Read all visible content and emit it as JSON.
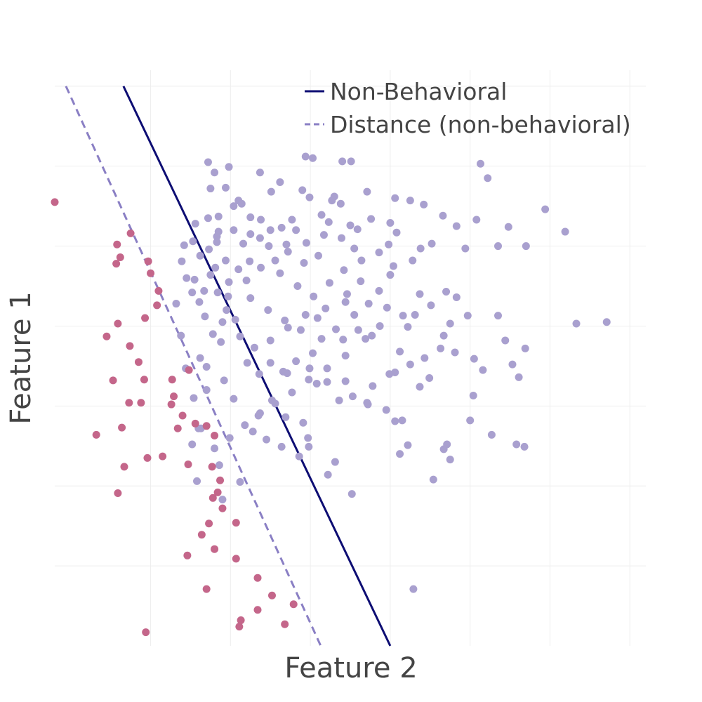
{
  "chart_data": {
    "type": "scatter",
    "xlabel": "Feature 2",
    "ylabel": "Feature 1",
    "xlim": [
      -1.2,
      6.2
    ],
    "ylim": [
      0.0,
      7.2
    ],
    "x_gridlines": [
      0,
      1,
      2,
      3,
      4,
      5,
      6
    ],
    "y_gridlines": [
      1,
      2,
      3,
      4,
      5,
      6,
      7
    ],
    "grid": true,
    "tick_labels_visible": false,
    "legend": {
      "position": "top-right",
      "entries": [
        {
          "label": "Non-Behavioral",
          "style": "solid",
          "color": "#0d0d73"
        },
        {
          "label": "Distance (non-behavioral)",
          "style": "dashed",
          "color": "#8a7fc4"
        }
      ]
    },
    "boundary": {
      "name": "Non-Behavioral",
      "color": "#0d0d73",
      "points": [
        [
          -0.34,
          7.0
        ],
        [
          3.0,
          0.0
        ]
      ]
    },
    "distance_line": {
      "name": "Distance (non-behavioral)",
      "color": "#8a7fc4",
      "points": [
        [
          -1.06,
          7.0
        ],
        [
          2.13,
          0.0
        ]
      ]
    },
    "colors": {
      "majority_points": "#a9a0cf",
      "minority_points": "#c4668a",
      "projection_segments": "#808080"
    },
    "series": [
      {
        "role": "majority",
        "color": "#a9a0cf",
        "points": [
          [
            0.72,
            6.05
          ],
          [
            0.8,
            5.92
          ],
          [
            0.98,
            5.99
          ],
          [
            1.37,
            5.92
          ],
          [
            1.62,
            5.8
          ],
          [
            1.94,
            6.12
          ],
          [
            2.03,
            6.1
          ],
          [
            2.4,
            6.06
          ],
          [
            2.51,
            6.06
          ],
          [
            0.75,
            5.72
          ],
          [
            0.94,
            5.73
          ],
          [
            1.1,
            5.57
          ],
          [
            1.51,
            5.68
          ],
          [
            1.9,
            5.7
          ],
          [
            1.99,
            5.61
          ],
          [
            2.27,
            5.57
          ],
          [
            2.3,
            5.62
          ],
          [
            2.71,
            5.68
          ],
          [
            3.06,
            5.6
          ],
          [
            3.25,
            5.57
          ],
          [
            3.42,
            5.52
          ],
          [
            4.13,
            6.03
          ],
          [
            4.22,
            5.85
          ],
          [
            4.94,
            5.46
          ],
          [
            5.19,
            5.18
          ],
          [
            4.7,
            5.0
          ],
          [
            3.7,
            4.43
          ],
          [
            3.83,
            4.36
          ],
          [
            3.97,
            4.13
          ],
          [
            4.35,
            4.13
          ],
          [
            4.44,
            3.82
          ],
          [
            4.53,
            3.52
          ],
          [
            4.69,
            3.72
          ],
          [
            5.33,
            4.03
          ],
          [
            5.71,
            4.05
          ],
          [
            3.81,
            3.67
          ],
          [
            3.37,
            3.24
          ],
          [
            3.12,
            3.68
          ],
          [
            3.43,
            3.6
          ],
          [
            3.49,
            3.35
          ],
          [
            3.63,
            3.72
          ],
          [
            4.05,
            3.59
          ],
          [
            4.04,
            3.13
          ],
          [
            4.16,
            3.45
          ],
          [
            4.61,
            3.36
          ],
          [
            4.0,
            2.82
          ],
          [
            3.71,
            2.52
          ],
          [
            3.12,
            2.4
          ],
          [
            3.22,
            2.51
          ],
          [
            3.54,
            2.08
          ],
          [
            3.67,
            2.46
          ],
          [
            3.75,
            2.33
          ],
          [
            4.58,
            2.52
          ],
          [
            4.68,
            2.49
          ],
          [
            4.27,
            2.64
          ],
          [
            2.22,
            2.14
          ],
          [
            2.31,
            2.3
          ],
          [
            2.52,
            1.9
          ],
          [
            1.98,
            2.49
          ],
          [
            1.86,
            2.37
          ],
          [
            1.64,
            2.49
          ],
          [
            1.45,
            2.58
          ],
          [
            1.28,
            2.68
          ],
          [
            1.35,
            2.88
          ],
          [
            1.52,
            3.07
          ],
          [
            1.69,
            2.86
          ],
          [
            1.91,
            2.79
          ],
          [
            1.97,
            2.6
          ],
          [
            2.36,
            3.07
          ],
          [
            2.53,
            3.12
          ],
          [
            2.71,
            3.04
          ],
          [
            2.78,
            3.25
          ],
          [
            2.95,
            2.95
          ],
          [
            3.06,
            2.81
          ],
          [
            3.15,
            2.82
          ],
          [
            2.21,
            3.3
          ],
          [
            2.44,
            3.31
          ],
          [
            1.71,
            3.41
          ],
          [
            1.99,
            3.47
          ],
          [
            2.08,
            3.28
          ],
          [
            2.72,
            3.02
          ],
          [
            2.99,
            3.4
          ],
          [
            3.06,
            3.42
          ],
          [
            2.41,
            3.83
          ],
          [
            2.77,
            3.88
          ],
          [
            3.25,
            3.52
          ],
          [
            3.67,
            3.88
          ],
          [
            3.51,
            4.26
          ],
          [
            3.75,
            4.03
          ],
          [
            3.16,
            4.13
          ],
          [
            3.22,
            3.99
          ],
          [
            3.31,
            4.14
          ],
          [
            3.37,
            4.4
          ],
          [
            3.0,
            4.64
          ],
          [
            3.28,
            4.82
          ],
          [
            3.04,
            4.75
          ],
          [
            2.98,
            5.02
          ],
          [
            3.0,
            5.29
          ],
          [
            3.08,
            5.17
          ],
          [
            3.38,
            4.97
          ],
          [
            3.52,
            5.03
          ],
          [
            3.66,
            5.38
          ],
          [
            3.83,
            5.25
          ],
          [
            3.94,
            4.97
          ],
          [
            4.35,
            5.0
          ],
          [
            4.08,
            5.33
          ],
          [
            4.48,
            5.24
          ],
          [
            2.86,
            4.92
          ],
          [
            2.55,
            4.97
          ],
          [
            2.5,
            5.26
          ],
          [
            2.38,
            5.53
          ],
          [
            2.14,
            5.39
          ],
          [
            2.23,
            5.3
          ],
          [
            2.1,
            4.88
          ],
          [
            1.92,
            4.79
          ],
          [
            1.72,
            4.93
          ],
          [
            1.37,
            5.1
          ],
          [
            1.16,
            5.03
          ],
          [
            1.24,
            4.81
          ],
          [
            1.2,
            4.57
          ],
          [
            0.97,
            4.37
          ],
          [
            0.95,
            4.2
          ],
          [
            0.9,
            4.05
          ],
          [
            0.81,
            4.73
          ],
          [
            0.94,
            4.82
          ],
          [
            0.85,
            5.18
          ],
          [
            0.53,
            5.06
          ],
          [
            0.42,
            5.01
          ],
          [
            0.39,
            4.81
          ],
          [
            0.55,
            4.58
          ],
          [
            0.52,
            4.42
          ],
          [
            0.67,
            4.44
          ],
          [
            0.73,
            4.96
          ],
          [
            0.83,
            5.12
          ],
          [
            0.56,
            5.28
          ],
          [
            0.72,
            5.35
          ],
          [
            0.85,
            5.37
          ],
          [
            1.04,
            5.5
          ],
          [
            1.14,
            5.53
          ],
          [
            1.25,
            5.36
          ],
          [
            1.38,
            5.33
          ],
          [
            1.5,
            5.2
          ],
          [
            1.64,
            5.23
          ],
          [
            1.77,
            5.33
          ],
          [
            1.82,
            5.2
          ],
          [
            1.7,
            5.02
          ],
          [
            1.56,
            4.82
          ],
          [
            1.38,
            4.73
          ],
          [
            1.1,
            4.71
          ],
          [
            0.98,
            4.55
          ],
          [
            0.84,
            4.42
          ],
          [
            0.75,
            4.64
          ],
          [
            0.61,
            4.3
          ],
          [
            0.68,
            4.12
          ],
          [
            0.78,
            3.9
          ],
          [
            0.88,
            3.8
          ],
          [
            0.62,
            3.6
          ],
          [
            0.7,
            3.49
          ],
          [
            0.92,
            3.32
          ],
          [
            1.04,
            3.09
          ],
          [
            1.21,
            3.54
          ],
          [
            1.36,
            3.4
          ],
          [
            1.5,
            3.54
          ],
          [
            1.66,
            3.43
          ],
          [
            1.82,
            3.56
          ],
          [
            2.03,
            3.66
          ],
          [
            2.14,
            3.84
          ],
          [
            2.32,
            3.96
          ],
          [
            2.55,
            4.14
          ],
          [
            2.73,
            4.28
          ],
          [
            2.96,
            4.23
          ],
          [
            2.87,
            4.0
          ],
          [
            2.69,
            3.84
          ],
          [
            2.44,
            3.63
          ],
          [
            2.21,
            3.47
          ],
          [
            1.98,
            3.33
          ],
          [
            1.77,
            3.17
          ],
          [
            1.56,
            3.03
          ],
          [
            1.37,
            2.91
          ],
          [
            1.18,
            2.76
          ],
          [
            0.99,
            2.6
          ],
          [
            0.8,
            2.47
          ],
          [
            0.63,
            2.72
          ],
          [
            0.54,
            3.1
          ],
          [
            0.44,
            3.47
          ],
          [
            0.38,
            3.88
          ],
          [
            0.32,
            4.28
          ],
          [
            0.45,
            4.6
          ],
          [
            0.62,
            4.88
          ],
          [
            0.83,
            5.05
          ],
          [
            1.04,
            5.2
          ],
          [
            1.25,
            5.15
          ],
          [
            1.48,
            5.0
          ],
          [
            1.62,
            4.66
          ],
          [
            1.84,
            4.5
          ],
          [
            2.04,
            4.37
          ],
          [
            2.24,
            4.54
          ],
          [
            2.42,
            4.7
          ],
          [
            2.63,
            4.56
          ],
          [
            2.86,
            4.44
          ],
          [
            2.09,
            4.1
          ],
          [
            1.88,
            3.95
          ],
          [
            1.68,
            4.07
          ],
          [
            1.47,
            4.2
          ],
          [
            1.25,
            4.35
          ],
          [
            1.06,
            4.08
          ],
          [
            1.12,
            3.87
          ],
          [
            1.3,
            3.73
          ],
          [
            1.5,
            3.82
          ],
          [
            2.44,
            4.3
          ],
          [
            2.6,
            3.95
          ],
          [
            1.95,
            5.04
          ],
          [
            2.17,
            5.14
          ],
          [
            2.39,
            5.1
          ],
          [
            2.59,
            5.21
          ],
          [
            2.76,
            5.34
          ],
          [
            2.64,
            4.82
          ],
          [
            2.46,
            4.4
          ],
          [
            2.19,
            4.22
          ],
          [
            1.94,
            4.14
          ],
          [
            1.72,
            3.98
          ],
          [
            0.52,
            2.52
          ],
          [
            0.58,
            2.06
          ],
          [
            0.9,
            1.83
          ],
          [
            1.12,
            2.05
          ],
          [
            0.86,
            2.26
          ],
          [
            0.7,
            3.2
          ],
          [
            0.6,
            2.72
          ],
          [
            3.29,
            0.71
          ]
        ]
      },
      {
        "role": "minority",
        "color": "#c4668a",
        "points": [
          [
            -1.2,
            5.55
          ],
          [
            -0.25,
            5.16
          ],
          [
            -0.42,
            5.02
          ],
          [
            -0.38,
            4.86
          ],
          [
            -0.43,
            4.78
          ],
          [
            -0.03,
            4.81
          ],
          [
            0.0,
            4.66
          ],
          [
            0.1,
            4.44
          ],
          [
            0.08,
            4.26
          ],
          [
            -0.07,
            4.1
          ],
          [
            -0.41,
            4.03
          ],
          [
            -0.55,
            3.87
          ],
          [
            -0.26,
            3.75
          ],
          [
            -0.15,
            3.55
          ],
          [
            -0.08,
            3.33
          ],
          [
            -0.47,
            3.32
          ],
          [
            -0.12,
            3.04
          ],
          [
            -0.27,
            3.04
          ],
          [
            -0.36,
            2.73
          ],
          [
            -0.68,
            2.64
          ],
          [
            -0.04,
            2.35
          ],
          [
            0.15,
            2.37
          ],
          [
            -0.33,
            2.24
          ],
          [
            -0.41,
            1.91
          ],
          [
            0.4,
            2.88
          ],
          [
            0.56,
            2.78
          ],
          [
            0.7,
            2.75
          ],
          [
            0.8,
            2.63
          ],
          [
            0.34,
            2.72
          ],
          [
            0.26,
            3.02
          ],
          [
            0.29,
            3.12
          ],
          [
            0.48,
            3.45
          ],
          [
            0.27,
            3.33
          ],
          [
            0.47,
            2.27
          ],
          [
            0.77,
            2.24
          ],
          [
            0.87,
            2.07
          ],
          [
            0.84,
            1.92
          ],
          [
            0.78,
            1.85
          ],
          [
            0.9,
            1.72
          ],
          [
            1.07,
            1.54
          ],
          [
            0.73,
            1.53
          ],
          [
            0.64,
            1.39
          ],
          [
            0.8,
            1.21
          ],
          [
            0.46,
            1.13
          ],
          [
            1.07,
            1.09
          ],
          [
            1.34,
            0.85
          ],
          [
            1.52,
            0.63
          ],
          [
            1.34,
            0.45
          ],
          [
            1.79,
            0.52
          ],
          [
            1.68,
            0.27
          ],
          [
            1.13,
            0.32
          ],
          [
            0.7,
            0.71
          ],
          [
            1.11,
            0.24
          ],
          [
            -0.06,
            0.17
          ]
        ]
      }
    ]
  }
}
